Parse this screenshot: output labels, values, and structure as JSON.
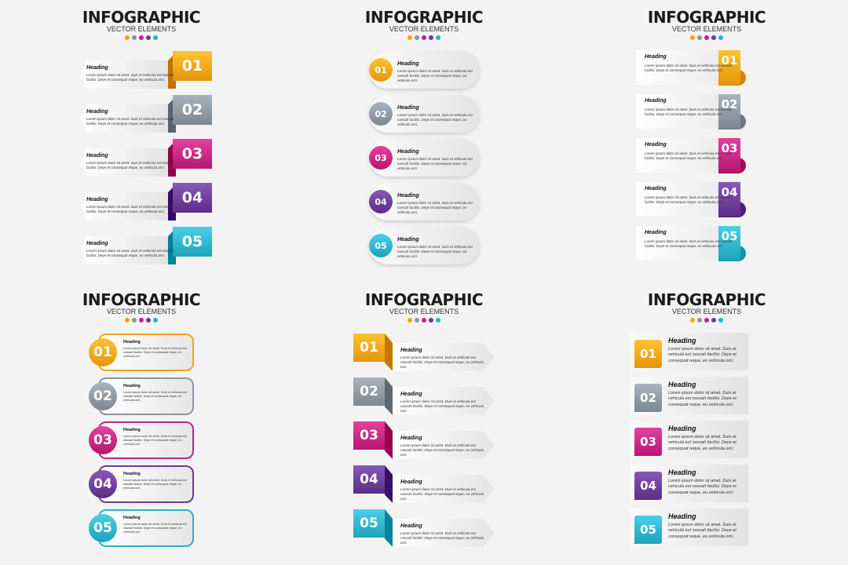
{
  "title": "INFOGRAPHIC",
  "subtitle": "VECTOR ELEMENTS",
  "colors": [
    "#f2a516",
    "#8c96a1",
    "#c5247f",
    "#6b3b98",
    "#2cb2c9"
  ],
  "items": [
    {
      "number": "01",
      "heading": "Heading",
      "text": "Lorem ipsum dolor sit amet. Duis et vehicula est nassah facilisi. Deye et consequat reque, eu vehicula orci."
    },
    {
      "number": "02",
      "heading": "Heading",
      "text": "Lorem ipsum dolor sit amet. Duis et vehicula est nassah facilisi. Deye et consequat reque, eu vehicula orci."
    },
    {
      "number": "03",
      "heading": "Heading",
      "text": "Lorem ipsum dolor sit amet. Duis et vehicula est nassah facilisi. Deye et consequat reque, eu vehicula orci."
    },
    {
      "number": "04",
      "heading": "Heading",
      "text": "Lorem ipsum dolor sit amet. Duis et vehicula est nassah facilisi. Deye et consequat reque, eu vehicula orci."
    },
    {
      "number": "05",
      "heading": "Heading",
      "text": "Lorem ipsum dolor sit amet. Duis et vehicula est nassah facilisi. Deye et consequat reque, eu vehicula orci."
    }
  ],
  "panels": [
    {
      "style": "tab-right"
    },
    {
      "style": "circle-pill"
    },
    {
      "style": "curl-right"
    },
    {
      "style": "circle-bordered"
    },
    {
      "style": "square-arrow"
    },
    {
      "style": "fold-left"
    }
  ]
}
